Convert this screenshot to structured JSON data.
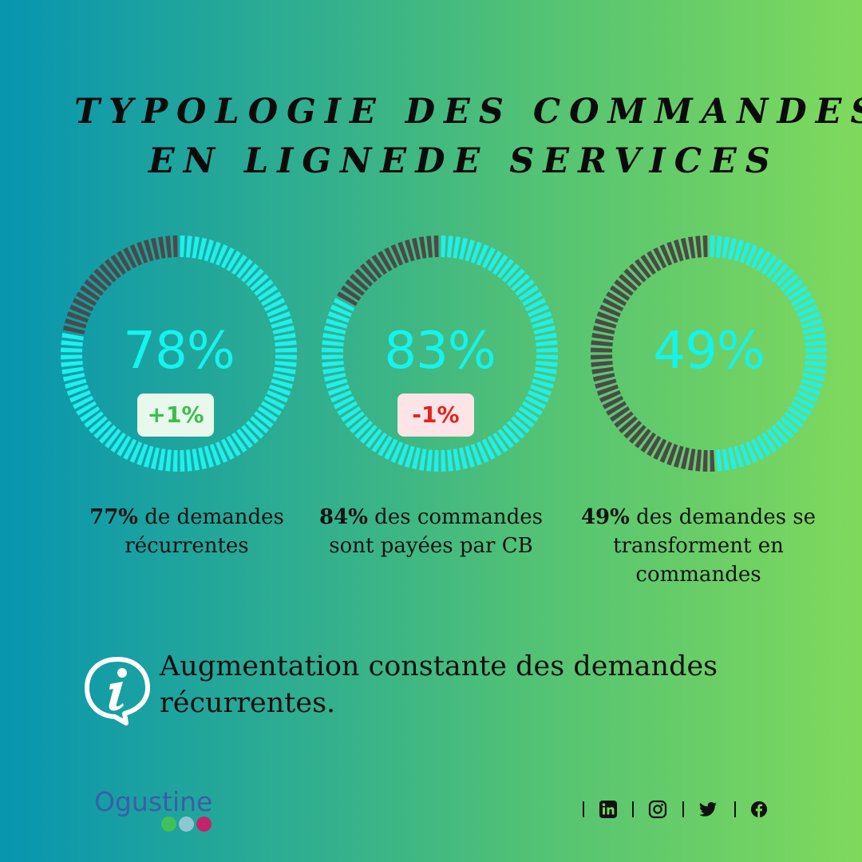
{
  "title": {
    "line1": "TYPOLOGIE DES COMMANDES",
    "line2": "EN LIGNEDE SERVICES"
  },
  "chart_data": [
    {
      "type": "donut",
      "value": 78,
      "label": "78%",
      "change": "+1%",
      "change_direction": "up",
      "caption_bold": "77%",
      "caption_text": " de demandes récurrentes"
    },
    {
      "type": "donut",
      "value": 83,
      "label": "83%",
      "change": "-1%",
      "change_direction": "down",
      "caption_bold": "84%",
      "caption_text": " des commandes sont payées par CB"
    },
    {
      "type": "donut",
      "value": 49,
      "label": "49%",
      "caption_bold": "49%",
      "caption_text": " des demandes se transforment en commandes"
    }
  ],
  "info": {
    "text": "Augmentation constante des demandes récurrentes.",
    "icon": "info-speech-bubble-icon"
  },
  "logo": {
    "text": "Ogustine",
    "dot_colors": [
      "#3fc25a",
      "#8fc6d2",
      "#c2246b"
    ]
  },
  "social": {
    "icons": [
      "linkedin-icon",
      "instagram-icon",
      "twitter-icon",
      "facebook-icon"
    ]
  },
  "colors": {
    "ring_fill": "#1ef0ee",
    "ring_empty": "#4a4a48",
    "segment_gap": "#ffffff",
    "percent_text": "#14f4ee",
    "badge_up_text": "#3bbf4a",
    "badge_down_text": "#e2231f"
  }
}
